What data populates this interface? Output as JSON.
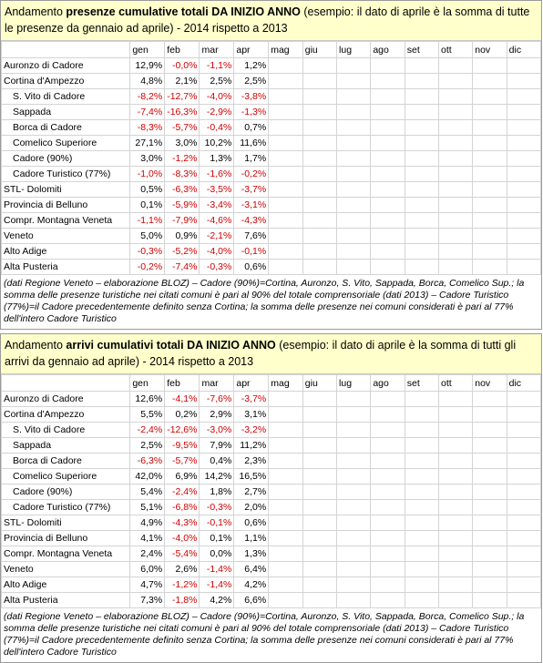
{
  "months": [
    "gen",
    "feb",
    "mar",
    "apr",
    "mag",
    "giu",
    "lug",
    "ago",
    "set",
    "ott",
    "nov",
    "dic"
  ],
  "presenze": {
    "title_pre": "Andamento ",
    "title_bold": "presenze cumulative totali DA INIZIO ANNO",
    "title_post": " (esempio: il dato di aprile è la somma di tutte le presenze da gennaio ad aprile) - 2014 rispetto a 2013",
    "rows": [
      {
        "label": "Auronzo di Cadore",
        "indent": false,
        "values": [
          "12,9%",
          "-0,0%",
          "-1,1%",
          "1,2%"
        ]
      },
      {
        "label": "Cortina d'Ampezzo",
        "indent": false,
        "values": [
          "4,8%",
          "2,1%",
          "2,5%",
          "2,5%"
        ]
      },
      {
        "label": "S. Vito di Cadore",
        "indent": true,
        "values": [
          "-8,2%",
          "-12,7%",
          "-4,0%",
          "-3,8%"
        ]
      },
      {
        "label": "Sappada",
        "indent": true,
        "values": [
          "-7,4%",
          "-16,3%",
          "-2,9%",
          "-1,3%"
        ]
      },
      {
        "label": "Borca di Cadore",
        "indent": true,
        "values": [
          "-8,3%",
          "-5,7%",
          "-0,4%",
          "0,7%"
        ]
      },
      {
        "label": "Comelico Superiore",
        "indent": true,
        "values": [
          "27,1%",
          "3,0%",
          "10,2%",
          "11,6%"
        ]
      },
      {
        "label": "Cadore (90%)",
        "indent": true,
        "values": [
          "3,0%",
          "-1,2%",
          "1,3%",
          "1,7%"
        ]
      },
      {
        "label": "Cadore Turistico (77%)",
        "indent": true,
        "values": [
          "-1,0%",
          "-8,3%",
          "-1,6%",
          "-0,2%"
        ]
      },
      {
        "label": "STL- Dolomiti",
        "indent": false,
        "values": [
          "0,5%",
          "-6,3%",
          "-3,5%",
          "-3,7%"
        ]
      },
      {
        "label": "Provincia di Belluno",
        "indent": false,
        "values": [
          "0,1%",
          "-5,9%",
          "-3,4%",
          "-3,1%"
        ]
      },
      {
        "label": "Compr. Montagna Veneta",
        "indent": false,
        "values": [
          "-1,1%",
          "-7,9%",
          "-4,6%",
          "-4,3%"
        ]
      },
      {
        "label": "Veneto",
        "indent": false,
        "values": [
          "5,0%",
          "0,9%",
          "-2,1%",
          "7,6%"
        ]
      },
      {
        "label": "Alto Adige",
        "indent": false,
        "values": [
          "-0,3%",
          "-5,2%",
          "-4,0%",
          "-0,1%"
        ]
      },
      {
        "label": "Alta Pusteria",
        "indent": false,
        "values": [
          "-0,2%",
          "-7,4%",
          "-0,3%",
          "0,6%"
        ]
      }
    ],
    "note": "(dati Regione Veneto – elaborazione BLOZ) – Cadore (90%)=Cortina, Auronzo, S. Vito, Sappada, Borca, Comelico Sup.; la somma delle presenze turistiche nei citati comuni è pari al 90% del totale comprensoriale (dati 2013) – Cadore Turistico (77%)=il Cadore precedentemente definito senza Cortina; la somma delle presenze nei comuni considerati è pari al 77% dell'intero Cadore Turistico"
  },
  "arrivi": {
    "title_pre": "Andamento ",
    "title_bold": "arrivi cumulativi totali DA INIZIO ANNO",
    "title_post": " (esempio: il dato di aprile è la somma di tutti gli arrivi da gennaio ad aprile) - 2014 rispetto a 2013",
    "rows": [
      {
        "label": "Auronzo di Cadore",
        "indent": false,
        "values": [
          "12,6%",
          "-4,1%",
          "-7,6%",
          "-3,7%"
        ]
      },
      {
        "label": "Cortina d'Ampezzo",
        "indent": false,
        "values": [
          "5,5%",
          "0,2%",
          "2,9%",
          "3,1%"
        ]
      },
      {
        "label": "S. Vito di Cadore",
        "indent": true,
        "values": [
          "-2,4%",
          "-12,6%",
          "-3,0%",
          "-3,2%"
        ]
      },
      {
        "label": "Sappada",
        "indent": true,
        "values": [
          "2,5%",
          "-9,5%",
          "7,9%",
          "11,2%"
        ]
      },
      {
        "label": "Borca di Cadore",
        "indent": true,
        "values": [
          "-6,3%",
          "-5,7%",
          "0,4%",
          "2,3%"
        ]
      },
      {
        "label": "Comelico Superiore",
        "indent": true,
        "values": [
          "42,0%",
          "6,9%",
          "14,2%",
          "16,5%"
        ]
      },
      {
        "label": "Cadore (90%)",
        "indent": true,
        "values": [
          "5,4%",
          "-2,4%",
          "1,8%",
          "2,7%"
        ]
      },
      {
        "label": "Cadore Turistico (77%)",
        "indent": true,
        "values": [
          "5,1%",
          "-6,8%",
          "-0,3%",
          "2,0%"
        ]
      },
      {
        "label": "STL- Dolomiti",
        "indent": false,
        "values": [
          "4,9%",
          "-4,3%",
          "-0,1%",
          "0,6%"
        ]
      },
      {
        "label": "Provincia di Belluno",
        "indent": false,
        "values": [
          "4,1%",
          "-4,0%",
          "0,1%",
          "1,1%"
        ]
      },
      {
        "label": "Compr. Montagna Veneta",
        "indent": false,
        "values": [
          "2,4%",
          "-5,4%",
          "0,0%",
          "1,3%"
        ]
      },
      {
        "label": "Veneto",
        "indent": false,
        "values": [
          "6,0%",
          "2,6%",
          "-1,4%",
          "6,4%"
        ]
      },
      {
        "label": "Alto Adige",
        "indent": false,
        "values": [
          "4,7%",
          "-1,2%",
          "-1,4%",
          "4,2%"
        ]
      },
      {
        "label": "Alta Pusteria",
        "indent": false,
        "values": [
          "7,3%",
          "-1,8%",
          "4,2%",
          "6,6%"
        ]
      }
    ],
    "note": "(dati Regione Veneto – elaborazione BLOZ) – Cadore (90%)=Cortina, Auronzo, S. Vito, Sappada, Borca, Comelico Sup.; la somma delle presenze turistiche nei citati comuni è pari al 90% del totale comprensoriale (dati 2013) – Cadore Turistico (77%)=il Cadore precedentemente definito senza Cortina; la somma delle presenze nei comuni considerati è pari al 77% dell'intero Cadore Turistico"
  },
  "colors": {
    "header_bg": "#ffffcc",
    "negative": "#d00000",
    "grid": "#d4d4d4"
  }
}
